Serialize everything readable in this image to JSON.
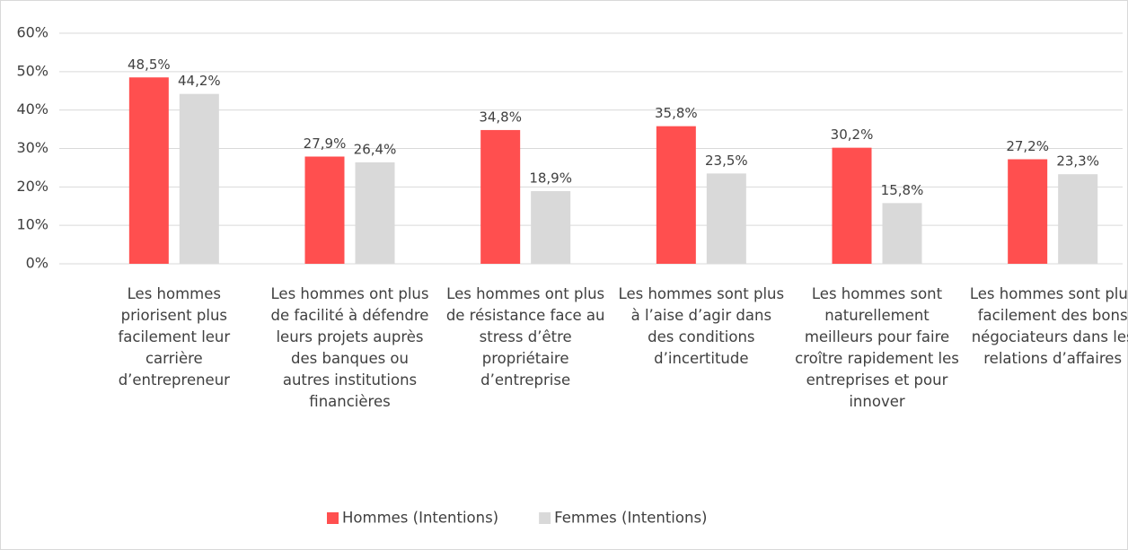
{
  "chart_data": {
    "type": "bar",
    "categories": [
      "Les hommes priorisent plus facilement leur carrière d’entrepreneur",
      "Les hommes ont plus de facilité à défendre leurs projets auprès des banques ou autres institutions financières",
      "Les hommes ont plus de résistance face au stress d’être propriétaire d’entreprise",
      "Les hommes sont plus à l’aise d’agir dans des conditions d’incertitude",
      "Les hommes sont naturellement meilleurs pour faire croître rapidement les entreprises et pour innover",
      "Les hommes sont plus facilement des bons négociateurs dans les relations d’affaires"
    ],
    "series": [
      {
        "name": "Hommes (Intentions)",
        "color": "#ff4f4f",
        "values": [
          48.5,
          27.9,
          34.8,
          35.8,
          30.2,
          27.2
        ],
        "value_labels": [
          "48,5%",
          "27,9%",
          "34,8%",
          "35,8%",
          "30,2%",
          "27,2%"
        ]
      },
      {
        "name": "Femmes (Intentions)",
        "color": "#d9d9d9",
        "values": [
          44.2,
          26.4,
          18.9,
          23.5,
          15.8,
          23.3
        ],
        "value_labels": [
          "44,2%",
          "26,4%",
          "18,9%",
          "23,5%",
          "15,8%",
          "23,3%"
        ]
      }
    ],
    "ylim": [
      0,
      60
    ],
    "yticks": [
      {
        "value": 0,
        "label": "0%"
      },
      {
        "value": 10,
        "label": "10%"
      },
      {
        "value": 20,
        "label": "20%"
      },
      {
        "value": 30,
        "label": "30%"
      },
      {
        "value": 40,
        "label": "40%"
      },
      {
        "value": 50,
        "label": "50%"
      },
      {
        "value": 60,
        "label": "60%"
      }
    ],
    "grid": true,
    "legend": "bottom"
  }
}
